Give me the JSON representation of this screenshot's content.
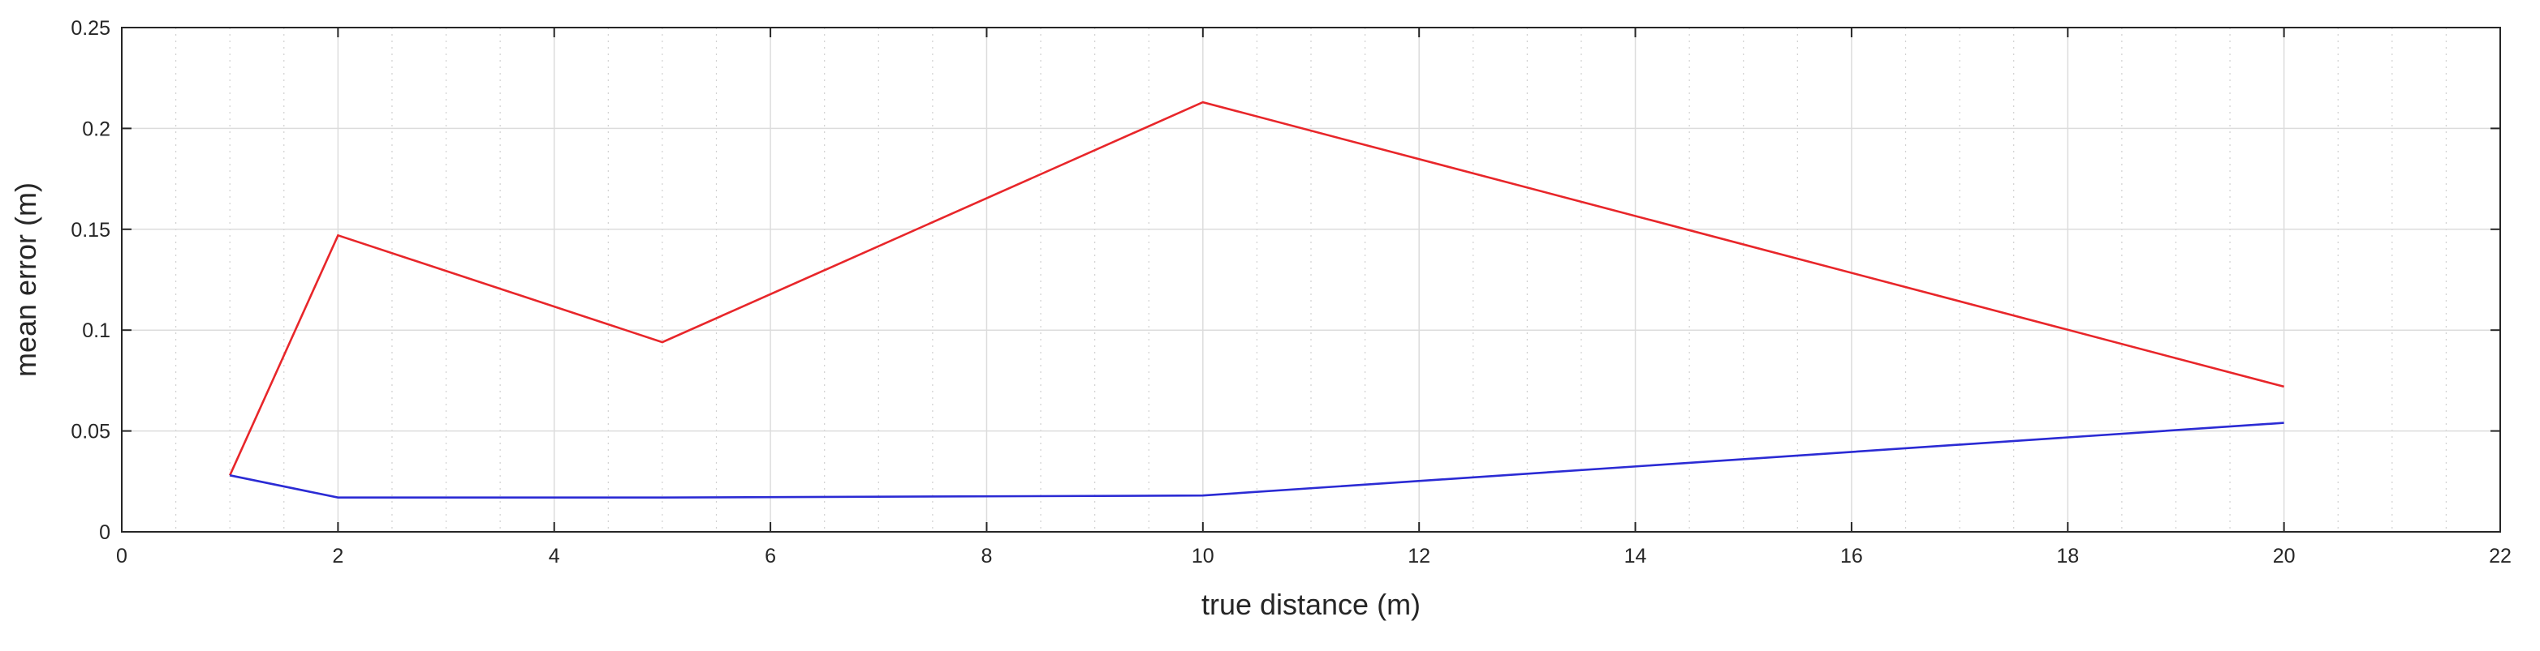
{
  "chart_data": {
    "type": "line",
    "title": "",
    "xlabel": "true distance (m)",
    "ylabel": "mean error (m)",
    "xlim": [
      0,
      22
    ],
    "ylim": [
      0,
      0.25
    ],
    "xticks": [
      0,
      2,
      4,
      6,
      8,
      10,
      12,
      14,
      16,
      18,
      20,
      22
    ],
    "yticks": [
      0,
      0.05,
      0.1,
      0.15,
      0.2,
      0.25
    ],
    "xtick_labels": [
      "0",
      "2",
      "4",
      "6",
      "8",
      "10",
      "12",
      "14",
      "16",
      "18",
      "20",
      "22"
    ],
    "ytick_labels": [
      "0",
      "0.05",
      "0.1",
      "0.15",
      "0.2",
      "0.25"
    ],
    "grid": true,
    "minor_grid": true,
    "legend": "none",
    "series": [
      {
        "color": "#e8262a",
        "x": [
          1,
          2,
          5,
          10,
          20
        ],
        "y": [
          0.028,
          0.147,
          0.094,
          0.213,
          0.072
        ]
      },
      {
        "color": "#2b2bd4",
        "x": [
          1,
          2,
          5,
          10,
          20
        ],
        "y": [
          0.028,
          0.017,
          0.017,
          0.018,
          0.054
        ]
      }
    ]
  }
}
